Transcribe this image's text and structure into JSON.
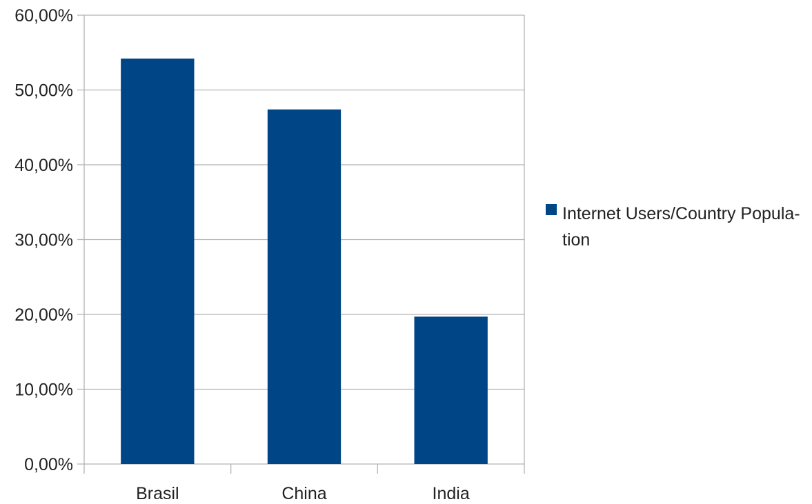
{
  "chart_data": {
    "type": "bar",
    "categories": [
      "Brasil",
      "China",
      "India"
    ],
    "series": [
      {
        "name": "Internet Users/Country Population",
        "values": [
          54.2,
          47.4,
          19.7
        ],
        "color": "#004586"
      }
    ],
    "ylim": [
      0,
      60
    ],
    "yticks": [
      0,
      10,
      20,
      30,
      40,
      50,
      60
    ],
    "ytick_labels": [
      "0,00%",
      "10,00%",
      "20,00%",
      "30,00%",
      "40,00%",
      "50,00%",
      "60,00%"
    ],
    "grid": true,
    "legend": {
      "position": "right",
      "label_line1": "Internet Users/Country Popula-",
      "label_line2": "tion"
    }
  }
}
